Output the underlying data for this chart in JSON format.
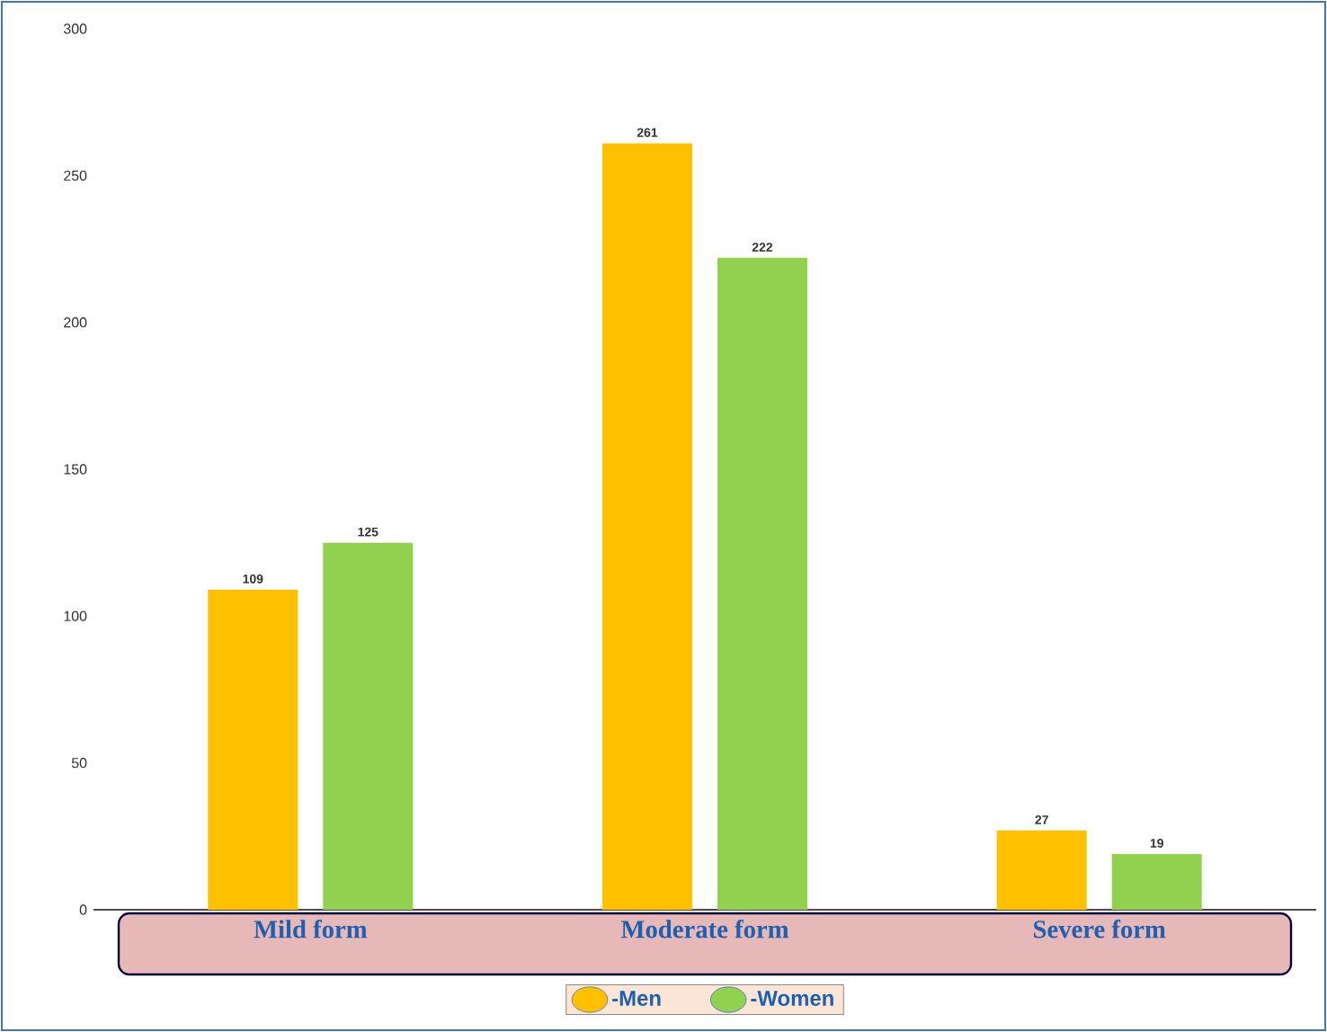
{
  "chart_data": {
    "type": "bar",
    "categories": [
      "Mild form",
      "Moderate form",
      "Severe form"
    ],
    "series": [
      {
        "name": "-Men",
        "color": "#ffc000",
        "values": [
          109,
          261,
          27
        ]
      },
      {
        "name": "-Women",
        "color": "#92d050",
        "values": [
          125,
          222,
          19
        ]
      }
    ],
    "ylim": [
      0,
      300
    ],
    "yticks": [
      0,
      50,
      100,
      150,
      200,
      250,
      300
    ],
    "data_labels": true,
    "legend": "bottom",
    "grid": false
  }
}
